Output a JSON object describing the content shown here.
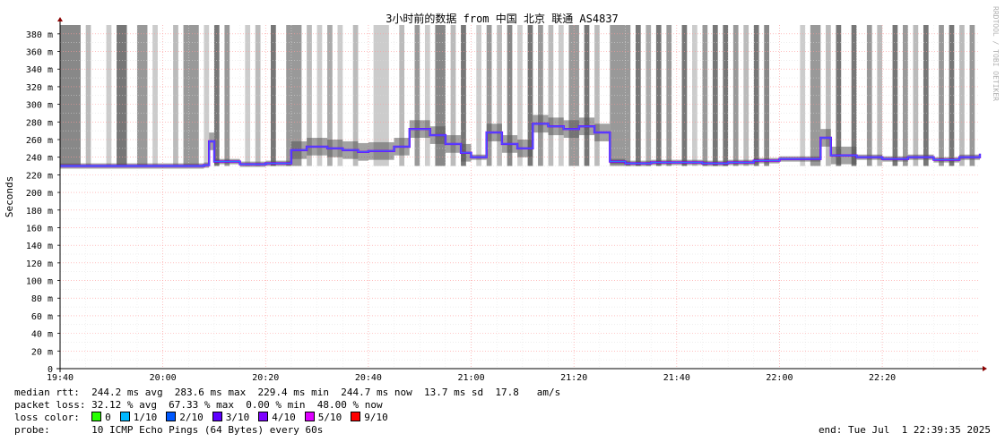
{
  "chart_data": {
    "type": "line",
    "title": "3小时前的数据 from 中国 北京 联通 AS4837",
    "ylabel": "Seconds",
    "ylim": [
      0,
      390
    ],
    "y_ticks": [
      "0",
      "20 m",
      "40 m",
      "60 m",
      "80 m",
      "100 m",
      "120 m",
      "140 m",
      "160 m",
      "180 m",
      "200 m",
      "220 m",
      "240 m",
      "260 m",
      "280 m",
      "300 m",
      "320 m",
      "340 m",
      "360 m",
      "380 m"
    ],
    "x_ticks": [
      "19:40",
      "20:00",
      "20:20",
      "20:40",
      "21:00",
      "21:20",
      "21:40",
      "22:00",
      "22:20"
    ],
    "x_start": "19:40",
    "x_end": "22:39",
    "series": [
      {
        "name": "median rtt",
        "x": [
          "19:40",
          "19:45",
          "19:50",
          "19:55",
          "20:00",
          "20:05",
          "20:08",
          "20:09",
          "20:10",
          "20:15",
          "20:20",
          "20:25",
          "20:28",
          "20:32",
          "20:35",
          "20:38",
          "20:40",
          "20:45",
          "20:48",
          "20:52",
          "20:55",
          "20:58",
          "21:00",
          "21:03",
          "21:06",
          "21:09",
          "21:12",
          "21:15",
          "21:18",
          "21:21",
          "21:24",
          "21:27",
          "21:30",
          "21:35",
          "21:40",
          "21:45",
          "21:50",
          "21:55",
          "22:00",
          "22:05",
          "22:08",
          "22:10",
          "22:15",
          "22:20",
          "22:25",
          "22:30",
          "22:35",
          "22:39"
        ],
        "values": [
          230,
          230,
          230,
          230,
          230,
          230,
          231,
          258,
          235,
          232,
          233,
          248,
          252,
          250,
          248,
          246,
          247,
          252,
          272,
          265,
          255,
          245,
          240,
          268,
          255,
          250,
          278,
          275,
          272,
          275,
          268,
          235,
          233,
          234,
          234,
          233,
          234,
          236,
          238,
          238,
          262,
          242,
          240,
          238,
          240,
          237,
          240,
          244
        ]
      }
    ],
    "loss_spans": [
      {
        "start": "19:40",
        "end": "19:44",
        "shade": "#888888"
      },
      {
        "start": "19:45",
        "end": "19:46",
        "shade": "#bbbbbb"
      },
      {
        "start": "19:49",
        "end": "19:50",
        "shade": "#cccccc"
      },
      {
        "start": "19:51",
        "end": "19:53",
        "shade": "#777777"
      },
      {
        "start": "19:55",
        "end": "19:57",
        "shade": "#999999"
      },
      {
        "start": "19:58",
        "end": "19:59",
        "shade": "#cccccc"
      },
      {
        "start": "20:02",
        "end": "20:03",
        "shade": "#bbbbbb"
      },
      {
        "start": "20:04",
        "end": "20:07",
        "shade": "#999999"
      },
      {
        "start": "20:08",
        "end": "20:09",
        "shade": "#cccccc"
      },
      {
        "start": "20:10",
        "end": "20:11",
        "shade": "#777777"
      },
      {
        "start": "20:12",
        "end": "20:13",
        "shade": "#999999"
      },
      {
        "start": "20:16",
        "end": "20:17",
        "shade": "#cccccc"
      },
      {
        "start": "20:18",
        "end": "20:19",
        "shade": "#bbbbbb"
      },
      {
        "start": "20:21",
        "end": "20:22",
        "shade": "#777777"
      },
      {
        "start": "20:24",
        "end": "20:27",
        "shade": "#999999"
      },
      {
        "start": "20:28",
        "end": "20:29",
        "shade": "#bbbbbb"
      },
      {
        "start": "20:30",
        "end": "20:31",
        "shade": "#cccccc"
      },
      {
        "start": "20:32",
        "end": "20:33",
        "shade": "#aaaaaa"
      },
      {
        "start": "20:34",
        "end": "20:35",
        "shade": "#cccccc"
      },
      {
        "start": "20:37",
        "end": "20:38",
        "shade": "#bbbbbb"
      },
      {
        "start": "20:41",
        "end": "20:44",
        "shade": "#cccccc"
      },
      {
        "start": "20:46",
        "end": "20:47",
        "shade": "#bbbbbb"
      },
      {
        "start": "20:49",
        "end": "20:50",
        "shade": "#999999"
      },
      {
        "start": "20:51",
        "end": "20:52",
        "shade": "#cccccc"
      },
      {
        "start": "20:53",
        "end": "20:55",
        "shade": "#888888"
      },
      {
        "start": "20:56",
        "end": "20:57",
        "shade": "#bbbbbb"
      },
      {
        "start": "20:58",
        "end": "20:59",
        "shade": "#777777"
      },
      {
        "start": "21:01",
        "end": "21:02",
        "shade": "#cccccc"
      },
      {
        "start": "21:03",
        "end": "21:04",
        "shade": "#999999"
      },
      {
        "start": "21:05",
        "end": "21:06",
        "shade": "#bbbbbb"
      },
      {
        "start": "21:07",
        "end": "21:08",
        "shade": "#888888"
      },
      {
        "start": "21:09",
        "end": "21:10",
        "shade": "#cccccc"
      },
      {
        "start": "21:11",
        "end": "21:12",
        "shade": "#777777"
      },
      {
        "start": "21:13",
        "end": "21:14",
        "shade": "#999999"
      },
      {
        "start": "21:15",
        "end": "21:16",
        "shade": "#bbbbbb"
      },
      {
        "start": "21:17",
        "end": "21:18",
        "shade": "#cccccc"
      },
      {
        "start": "21:19",
        "end": "21:21",
        "shade": "#999999"
      },
      {
        "start": "21:22",
        "end": "21:23",
        "shade": "#777777"
      },
      {
        "start": "21:24",
        "end": "21:25",
        "shade": "#bbbbbb"
      },
      {
        "start": "21:27",
        "end": "21:31",
        "shade": "#999999"
      },
      {
        "start": "21:32",
        "end": "21:33",
        "shade": "#777777"
      },
      {
        "start": "21:34",
        "end": "21:35",
        "shade": "#aaaaaa"
      },
      {
        "start": "21:36",
        "end": "21:37",
        "shade": "#777777"
      },
      {
        "start": "21:38",
        "end": "21:39",
        "shade": "#999999"
      },
      {
        "start": "21:41",
        "end": "21:42",
        "shade": "#777777"
      },
      {
        "start": "21:43",
        "end": "21:44",
        "shade": "#cccccc"
      },
      {
        "start": "21:45",
        "end": "21:46",
        "shade": "#999999"
      },
      {
        "start": "21:47",
        "end": "21:48",
        "shade": "#777777"
      },
      {
        "start": "21:49",
        "end": "21:50",
        "shade": "#777777"
      },
      {
        "start": "21:51",
        "end": "21:52",
        "shade": "#999999"
      },
      {
        "start": "21:53",
        "end": "21:54",
        "shade": "#bbbbbb"
      },
      {
        "start": "21:55",
        "end": "21:56",
        "shade": "#777777"
      },
      {
        "start": "21:57",
        "end": "21:58",
        "shade": "#888888"
      },
      {
        "start": "22:04",
        "end": "22:05",
        "shade": "#cccccc"
      },
      {
        "start": "22:06",
        "end": "22:08",
        "shade": "#999999"
      },
      {
        "start": "22:09",
        "end": "22:10",
        "shade": "#bbbbbb"
      },
      {
        "start": "22:11",
        "end": "22:12",
        "shade": "#777777"
      },
      {
        "start": "22:14",
        "end": "22:15",
        "shade": "#777777"
      },
      {
        "start": "22:17",
        "end": "22:18",
        "shade": "#999999"
      },
      {
        "start": "22:19",
        "end": "22:20",
        "shade": "#bbbbbb"
      },
      {
        "start": "22:22",
        "end": "22:23",
        "shade": "#777777"
      },
      {
        "start": "22:24",
        "end": "22:25",
        "shade": "#999999"
      },
      {
        "start": "22:26",
        "end": "22:27",
        "shade": "#bbbbbb"
      },
      {
        "start": "22:28",
        "end": "22:29",
        "shade": "#777777"
      },
      {
        "start": "22:31",
        "end": "22:32",
        "shade": "#999999"
      },
      {
        "start": "22:33",
        "end": "22:34",
        "shade": "#777777"
      },
      {
        "start": "22:35",
        "end": "22:36",
        "shade": "#bbbbbb"
      },
      {
        "start": "22:37",
        "end": "22:38",
        "shade": "#999999"
      }
    ],
    "grid": true
  },
  "watermark": "RRDTOOL / TOBI OETIKER",
  "stats": {
    "median_rtt": "median rtt:  244.2 ms avg  283.6 ms max  229.4 ms min  244.7 ms now  13.7 ms sd  17.8   am/s",
    "packet_loss": "packet loss: 32.12 % avg  67.33 % max  0.00 % min  48.00 % now",
    "loss_color_label": "loss color:",
    "probe": "probe:       10 ICMP Echo Pings (64 Bytes) every 60s",
    "end": "end: Tue Jul  1 22:39:35 2025"
  },
  "loss_colors": [
    {
      "label": "0",
      "color": "#26ff00"
    },
    {
      "label": "1/10",
      "color": "#00b8ff"
    },
    {
      "label": "2/10",
      "color": "#0059ff"
    },
    {
      "label": "3/10",
      "color": "#5e00ff"
    },
    {
      "label": "4/10",
      "color": "#7e00ff"
    },
    {
      "label": "5/10",
      "color": "#dd00ff"
    },
    {
      "label": "9/10",
      "color": "#ff0000"
    }
  ]
}
